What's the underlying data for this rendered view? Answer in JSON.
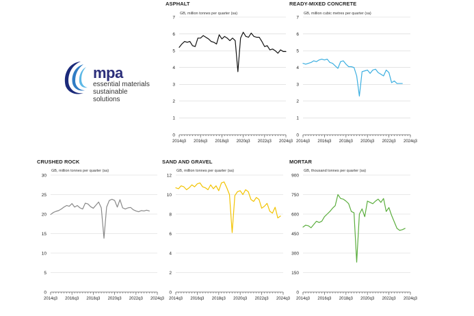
{
  "logo": {
    "name": "mpa",
    "line1": "essential materials",
    "line2": "sustainable solutions"
  },
  "chart_data": [
    {
      "type": "line",
      "title": "ASPHALT",
      "ylabel": "GB, million tonnes per quarter (sa)",
      "color": "#111111",
      "ylim": [
        0,
        7
      ],
      "yticks": [
        0,
        1,
        2,
        3,
        4,
        5,
        6,
        7
      ],
      "xticks": [
        "2014q3",
        "2016q3",
        "2018q3",
        "2020q3",
        "2022q3",
        "2024q3"
      ],
      "x_start": "2014q3",
      "values": [
        5.2,
        5.4,
        5.55,
        5.5,
        5.55,
        5.3,
        5.25,
        5.75,
        5.75,
        5.9,
        5.8,
        5.7,
        5.55,
        5.5,
        5.4,
        5.95,
        5.7,
        5.85,
        5.75,
        5.6,
        5.75,
        5.6,
        3.75,
        5.75,
        6.1,
        5.85,
        5.8,
        6.05,
        5.85,
        5.8,
        5.8,
        5.55,
        5.25,
        5.3,
        5.05,
        5.1,
        5.0,
        4.85,
        5.05,
        4.95,
        4.95
      ]
    },
    {
      "type": "line",
      "title": "READY-MIXED CONCRETE",
      "ylabel": "GB, million cubic metres per quarter (sa)",
      "color": "#3aaee0",
      "ylim": [
        0,
        7
      ],
      "yticks": [
        0,
        1,
        2,
        3,
        4,
        5,
        6,
        7
      ],
      "xticks": [
        "2014q3",
        "2016q3",
        "2018q3",
        "2020q3",
        "2022q3",
        "2024q3"
      ],
      "x_start": "2014q3",
      "values": [
        4.25,
        4.2,
        4.25,
        4.3,
        4.4,
        4.35,
        4.45,
        4.5,
        4.45,
        4.5,
        4.3,
        4.25,
        4.1,
        3.95,
        4.35,
        4.4,
        4.2,
        4.05,
        4.05,
        4.0,
        3.5,
        2.3,
        3.75,
        3.8,
        3.85,
        3.65,
        3.85,
        3.9,
        3.7,
        3.6,
        3.5,
        3.85,
        3.7,
        3.1,
        3.2,
        3.05,
        3.05,
        3.05
      ]
    },
    {
      "type": "line",
      "title": "CRUSHED ROCK",
      "ylabel": "GB, million tonnes per quarter (sa)",
      "color": "#888888",
      "ylim": [
        0,
        30
      ],
      "yticks": [
        0,
        5,
        10,
        15,
        20,
        25,
        30
      ],
      "xticks": [
        "2014q3",
        "2016q3",
        "2018q3",
        "2020q3",
        "2022q3",
        "2024q3"
      ],
      "x_start": "2014q3",
      "values": [
        19.9,
        20.4,
        20.7,
        20.9,
        21.3,
        21.8,
        22.2,
        22.0,
        22.7,
        21.8,
        22.2,
        21.6,
        21.3,
        22.8,
        22.6,
        21.9,
        21.5,
        22.3,
        23.1,
        21.6,
        13.8,
        21.8,
        23.5,
        23.8,
        23.5,
        21.8,
        23.7,
        21.6,
        21.3,
        21.6,
        21.7,
        21.1,
        20.8,
        20.6,
        20.9,
        20.8,
        21.0,
        20.8
      ]
    },
    {
      "type": "line",
      "title": "SAND AND GRAVEL",
      "ylabel": "GB, million tonnes per quarter (sa)",
      "color": "#f2c300",
      "ylim": [
        0,
        12
      ],
      "yticks": [
        0,
        2,
        4,
        6,
        8,
        10,
        12
      ],
      "xticks": [
        "2014q3",
        "2016q3",
        "2018q3",
        "2020q3",
        "2022q3",
        "2024q3"
      ],
      "x_start": "2014q3",
      "values": [
        10.7,
        10.6,
        10.9,
        10.8,
        10.5,
        10.7,
        11.0,
        10.8,
        11.1,
        11.2,
        10.8,
        10.7,
        10.5,
        11.0,
        10.6,
        10.9,
        10.4,
        11.2,
        11.3,
        10.7,
        10.0,
        6.1,
        9.9,
        10.3,
        10.4,
        10.0,
        10.5,
        10.3,
        9.5,
        9.3,
        9.7,
        9.5,
        8.6,
        8.8,
        9.1,
        8.3,
        8.1,
        8.7,
        7.6,
        7.8
      ]
    },
    {
      "type": "line",
      "title": "MORTAR",
      "ylabel": "GB, thousand tonnes per quarter (sa)",
      "color": "#5aad3c",
      "ylim": [
        0,
        900
      ],
      "yticks": [
        0,
        150,
        300,
        450,
        600,
        750,
        900
      ],
      "xticks": [
        "2014q3",
        "2016q3",
        "2018q3",
        "2020q3",
        "2022q3",
        "2024q3"
      ],
      "x_start": "2014q3",
      "values": [
        500,
        515,
        510,
        495,
        520,
        545,
        535,
        545,
        580,
        600,
        620,
        645,
        665,
        750,
        720,
        715,
        700,
        680,
        620,
        610,
        230,
        600,
        640,
        580,
        700,
        690,
        680,
        700,
        715,
        690,
        720,
        620,
        650,
        590,
        540,
        490,
        475,
        480,
        490
      ]
    }
  ]
}
